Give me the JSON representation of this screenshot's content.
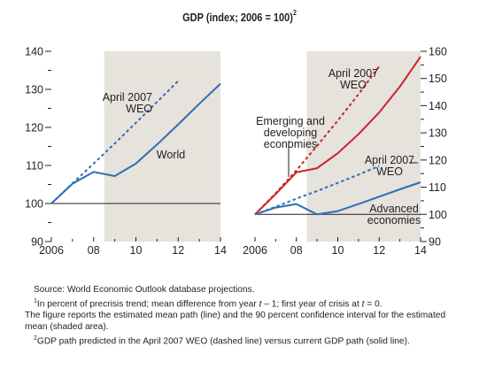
{
  "title": "GDP (index; 2006 = 100)",
  "title_footnote_mark": "2",
  "chart_data": [
    {
      "type": "line",
      "panel": "left",
      "x_ticks": [
        2006,
        2008,
        2010,
        2012,
        2014
      ],
      "x_tick_labels": [
        "2006",
        "08",
        "10",
        "12",
        "14"
      ],
      "xlim": [
        2006,
        2014
      ],
      "ylim": [
        90,
        140
      ],
      "y_ticks": [
        90,
        100,
        110,
        120,
        130,
        140
      ],
      "y_axis_side": "left",
      "baseline": 100,
      "shaded_from": 2008.5,
      "shade_color": "#e6e2dc",
      "series": [
        {
          "name": "World",
          "style": "solid",
          "color": "#2e6fb5",
          "x": [
            2006,
            2007,
            2008,
            2009,
            2010,
            2011,
            2012,
            2013,
            2014
          ],
          "y": [
            100,
            105.2,
            108.3,
            107.2,
            110.5,
            115.5,
            120.8,
            126.2,
            131.5
          ]
        },
        {
          "name": "April 2007 WEO",
          "style": "dashed",
          "color": "#2e6fb5",
          "x": [
            2006,
            2007,
            2008,
            2009,
            2010,
            2011,
            2012
          ],
          "y": [
            100,
            105.3,
            110.5,
            115.8,
            121.2,
            126.7,
            132.2
          ]
        }
      ],
      "annotations": [
        {
          "text_lines": [
            "April 2007",
            "WEO"
          ],
          "target": "dashed"
        },
        {
          "text_lines": [
            "World"
          ],
          "target": "solid"
        }
      ]
    },
    {
      "type": "line",
      "panel": "right",
      "x_ticks": [
        2006,
        2008,
        2010,
        2012,
        2014
      ],
      "x_tick_labels": [
        "2006",
        "08",
        "10",
        "12",
        "14"
      ],
      "xlim": [
        2006,
        2014
      ],
      "ylim": [
        90,
        160
      ],
      "y_ticks": [
        90,
        100,
        110,
        120,
        130,
        140,
        150,
        160
      ],
      "y_axis_side": "right",
      "baseline": 100,
      "shaded_from": 2008.5,
      "shade_color": "#e6e2dc",
      "series": [
        {
          "name": "Emerging and developing economies",
          "style": "solid",
          "color": "#cc2229",
          "x": [
            2006,
            2007,
            2008,
            2009,
            2010,
            2011,
            2012,
            2013,
            2014
          ],
          "y": [
            100,
            107.5,
            115.5,
            117,
            122.5,
            129.5,
            137.5,
            147,
            158
          ]
        },
        {
          "name": "Emerging and developing economies, April 2007 WEO",
          "style": "dashed",
          "color": "#cc2229",
          "x": [
            2006,
            2007,
            2008,
            2009,
            2010,
            2011,
            2012
          ],
          "y": [
            100,
            107.8,
            116.2,
            125.2,
            134.5,
            144.2,
            154.5
          ]
        },
        {
          "name": "Advanced economies",
          "style": "solid",
          "color": "#2e6fb5",
          "x": [
            2006,
            2007,
            2008,
            2009,
            2010,
            2011,
            2012,
            2013,
            2014
          ],
          "y": [
            100,
            102.5,
            103.8,
            100,
            101.2,
            103.8,
            106.5,
            109.2,
            111.8
          ]
        },
        {
          "name": "Advanced economies, April 2007 WEO",
          "style": "dashed",
          "color": "#2e6fb5",
          "x": [
            2006,
            2007,
            2008,
            2009,
            2010,
            2011,
            2012
          ],
          "y": [
            100,
            102.8,
            105.8,
            108.6,
            111.6,
            114.6,
            117.8
          ]
        }
      ],
      "annotations": [
        {
          "text_lines": [
            "April 2007",
            "WEO"
          ],
          "target": "red dashed"
        },
        {
          "text_lines": [
            "Emerging and",
            "developing",
            "economies"
          ],
          "target": "red solid"
        },
        {
          "text_lines": [
            "April 2007",
            "WEO"
          ],
          "target": "blue dashed"
        },
        {
          "text_lines": [
            "Advanced",
            "economies"
          ],
          "target": "blue solid"
        }
      ]
    }
  ],
  "notes": {
    "source": "Source: World Economic Outlook database projections.",
    "fn1_mark": "1",
    "fn1_a": "In percent of precrisis trend; mean difference from year ",
    "fn1_t1": "t",
    "fn1_b": " – 1; first year of crisis at ",
    "fn1_t2": "t",
    "fn1_c": " = 0.",
    "fn1_cont": "The figure reports the estimated mean path (line) and the 90 percent confidence interval for the estimated mean (shaded area).",
    "fn2_mark": "2",
    "fn2_text": "GDP path predicted in the April 2007 WEO (dashed line) versus current GDP path (solid line)."
  }
}
